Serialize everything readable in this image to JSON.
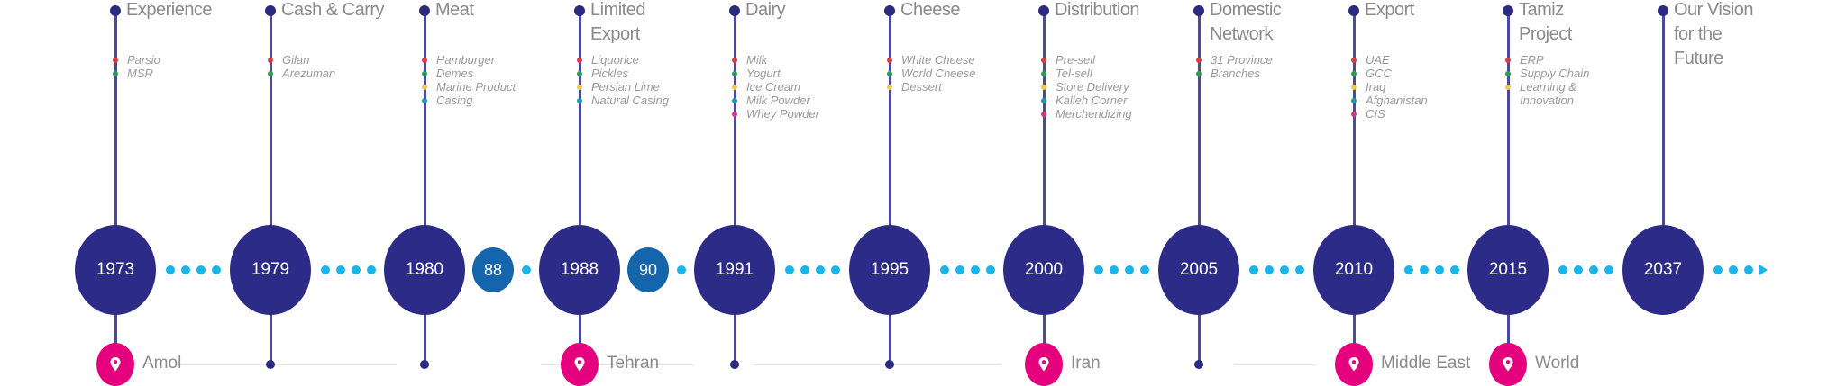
{
  "colors": {
    "circle": "#2d2b88",
    "small_circle": "#1565ad",
    "connector": "#19b5e8",
    "pin": "#e5007e",
    "bullets": [
      "#e03a3e",
      "#2e9a5a",
      "#f2c94c",
      "#1b9bb0",
      "#e0337e"
    ]
  },
  "events": [
    {
      "year": "1973",
      "title": [
        "Experience"
      ],
      "items": [
        "Parsio",
        "MSR"
      ],
      "place": "Amol",
      "bottom": "pin"
    },
    {
      "year": "1979",
      "title": [
        "Cash & Carry"
      ],
      "items": [
        "Gilan",
        "Arezuman"
      ],
      "bottom": "dot"
    },
    {
      "year": "1980",
      "title": [
        "Meat"
      ],
      "items": [
        "Hamburger",
        "Demes",
        "Marine Product",
        "Casing"
      ],
      "bottom": "dot"
    },
    {
      "year": "1988",
      "title": [
        "Limited",
        "Export"
      ],
      "items": [
        "Liquorice",
        "Pickles",
        "Persian Lime",
        "Natural Casing"
      ],
      "place": "Tehran",
      "bottom": "pin"
    },
    {
      "year": "1991",
      "title": [
        "Dairy"
      ],
      "items": [
        "Milk",
        "Yogurt",
        "Ice Cream",
        "Milk Powder",
        "Whey Powder"
      ],
      "bottom": "dot"
    },
    {
      "year": "1995",
      "title": [
        "Cheese"
      ],
      "items": [
        "White Cheese",
        "World Cheese",
        "Dessert"
      ],
      "bottom": "dot"
    },
    {
      "year": "2000",
      "title": [
        "Distribution"
      ],
      "items": [
        "Pre-sell",
        "Tel-sell",
        "Store Delivery",
        "Kalleh Corner",
        "Merchendizing"
      ],
      "place": "Iran",
      "bottom": "pin"
    },
    {
      "year": "2005",
      "title": [
        "Domestic",
        "Network"
      ],
      "items": [
        "31 Province",
        "Branches"
      ],
      "bottom": "dot"
    },
    {
      "year": "2010",
      "title": [
        "Export"
      ],
      "items": [
        "UAE",
        "GCC",
        "Iraq",
        "Afghanistan",
        "CIS"
      ],
      "place": "Middle East",
      "bottom": "pin"
    },
    {
      "year": "2015",
      "title": [
        "Tamiz",
        "Project"
      ],
      "items": [
        "ERP",
        "Supply Chain",
        "Learning &",
        "Innovation"
      ],
      "place": "World",
      "bottom": "pin"
    },
    {
      "year": "2037",
      "title": [
        "Our Vision",
        "for the",
        "Future"
      ],
      "items": [],
      "bottom": "none"
    }
  ],
  "small_markers": [
    "88",
    "90"
  ]
}
